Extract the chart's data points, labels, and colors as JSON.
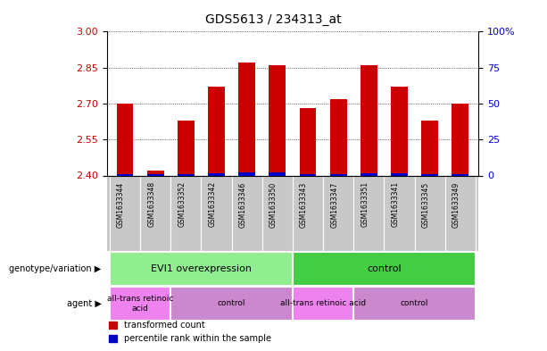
{
  "title": "GDS5613 / 234313_at",
  "samples": [
    "GSM1633344",
    "GSM1633348",
    "GSM1633352",
    "GSM1633342",
    "GSM1633346",
    "GSM1633350",
    "GSM1633343",
    "GSM1633347",
    "GSM1633351",
    "GSM1633341",
    "GSM1633345",
    "GSM1633349"
  ],
  "red_values": [
    2.7,
    2.42,
    2.63,
    2.77,
    2.87,
    2.86,
    2.68,
    2.72,
    2.86,
    2.77,
    2.63,
    2.7
  ],
  "blue_values": [
    2.405,
    2.405,
    2.407,
    2.408,
    2.413,
    2.412,
    2.407,
    2.406,
    2.409,
    2.408,
    2.406,
    2.406
  ],
  "ymin": 2.4,
  "ymax": 3.0,
  "yticks_left": [
    2.4,
    2.55,
    2.7,
    2.85,
    3.0
  ],
  "yticks_right": [
    0,
    25,
    50,
    75,
    100
  ],
  "bar_width": 0.55,
  "red_color": "#cc0000",
  "blue_color": "#0000cc",
  "grid_color": "#000000",
  "left_axis_color": "#cc0000",
  "right_axis_color": "#0000cc",
  "xtick_bg": "#c8c8c8",
  "geno_colors": [
    "#90ee90",
    "#44cc44"
  ],
  "agent_colors": [
    "#ee82ee",
    "#cc88cc"
  ],
  "geno_row_label": "genotype/variation",
  "agent_row_label": "agent",
  "legend_red": "transformed count",
  "legend_blue": "percentile rank within the sample",
  "geno_groups": [
    {
      "text": "EVI1 overexpression",
      "xstart": -0.5,
      "xend": 5.5,
      "color": "#90ee90"
    },
    {
      "text": "control",
      "xstart": 5.5,
      "xend": 11.5,
      "color": "#44cc44"
    }
  ],
  "agent_groups": [
    {
      "text": "all-trans retinoic\nacid",
      "xstart": -0.5,
      "xend": 1.5,
      "color": "#ee82ee"
    },
    {
      "text": "control",
      "xstart": 1.5,
      "xend": 5.5,
      "color": "#cc88cc"
    },
    {
      "text": "all-trans retinoic acid",
      "xstart": 5.5,
      "xend": 7.5,
      "color": "#ee82ee"
    },
    {
      "text": "control",
      "xstart": 7.5,
      "xend": 11.5,
      "color": "#cc88cc"
    }
  ]
}
